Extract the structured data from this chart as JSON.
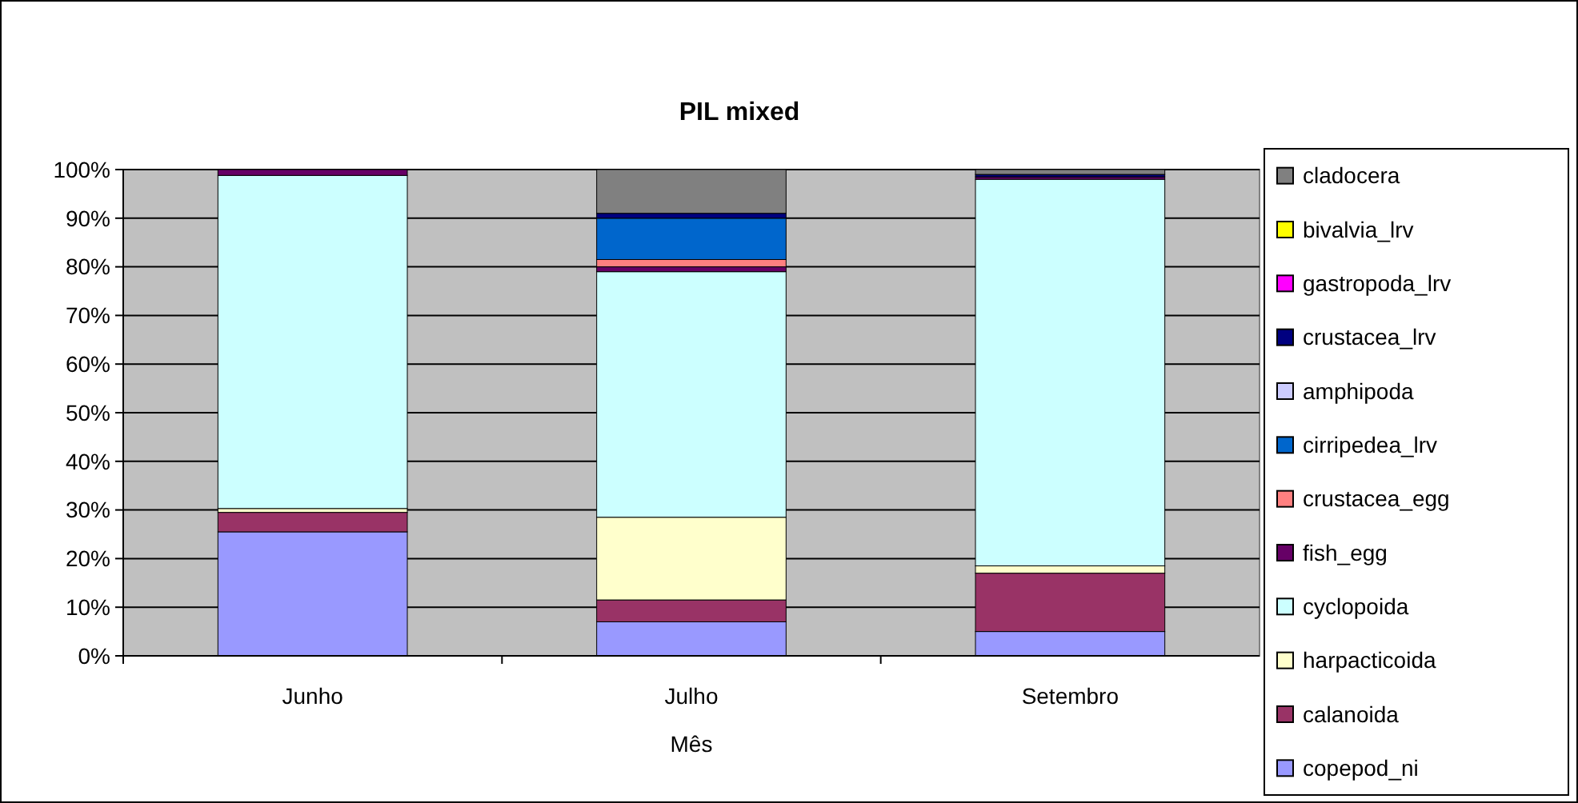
{
  "chart_data": {
    "type": "bar",
    "title": "PIL mixed",
    "xlabel": "Mês",
    "stacked": true,
    "categories": [
      "Junho",
      "Julho",
      "Setembro"
    ],
    "ylim": [
      0,
      100
    ],
    "yticks": [
      {
        "value": 0,
        "label": "0%"
      },
      {
        "value": 10,
        "label": "10%"
      },
      {
        "value": 20,
        "label": "20%"
      },
      {
        "value": 30,
        "label": "30%"
      },
      {
        "value": 40,
        "label": "40%"
      },
      {
        "value": 50,
        "label": "50%"
      },
      {
        "value": 60,
        "label": "60%"
      },
      {
        "value": 70,
        "label": "70%"
      },
      {
        "value": 80,
        "label": "80%"
      },
      {
        "value": 90,
        "label": "90%"
      },
      {
        "value": 100,
        "label": "100%"
      }
    ],
    "grid": "y",
    "legend": "right",
    "series": [
      {
        "name": "copepod_ni",
        "color": "#9999ff",
        "values": [
          25.5,
          7,
          5
        ]
      },
      {
        "name": "calanoida",
        "color": "#993366",
        "values": [
          4,
          4.5,
          12
        ]
      },
      {
        "name": "harpacticoida",
        "color": "#ffffcc",
        "values": [
          0.8,
          17,
          1.5
        ]
      },
      {
        "name": "cyclopoida",
        "color": "#ccffff",
        "values": [
          68.5,
          50.5,
          79.5
        ]
      },
      {
        "name": "fish_egg",
        "color": "#660066",
        "values": [
          1.2,
          1,
          0.5
        ]
      },
      {
        "name": "crustacea_egg",
        "color": "#ff8080",
        "values": [
          0,
          1.5,
          0
        ]
      },
      {
        "name": "cirripedea_lrv",
        "color": "#0066cc",
        "values": [
          0,
          8.5,
          0
        ]
      },
      {
        "name": "amphipoda",
        "color": "#ccccff",
        "values": [
          0,
          0,
          0
        ]
      },
      {
        "name": "crustacea_lrv",
        "color": "#000080",
        "values": [
          0,
          1,
          0.5
        ]
      },
      {
        "name": "gastropoda_lrv",
        "color": "#ff00ff",
        "values": [
          0,
          0,
          0
        ]
      },
      {
        "name": "bivalvia_lrv",
        "color": "#ffff00",
        "values": [
          0,
          0,
          0
        ]
      },
      {
        "name": "cladocera",
        "color": "#808080",
        "values": [
          0,
          9,
          1
        ]
      }
    ]
  }
}
